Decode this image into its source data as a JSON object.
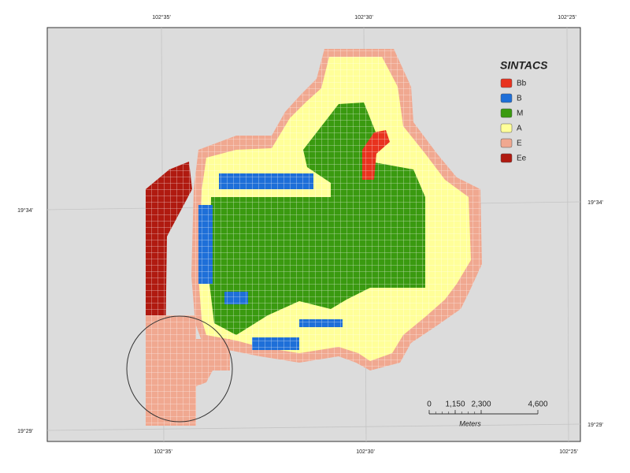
{
  "coordinates": {
    "top": [
      "102°35'",
      "102°30'",
      "102°25'"
    ],
    "bottom": [
      "102°35'",
      "102°30'",
      "102°25'"
    ],
    "left": [
      "19°34'",
      "19°29'"
    ],
    "right": [
      "19°34'",
      "19°29'"
    ]
  },
  "legend": {
    "title": "SINTACS",
    "items": [
      {
        "label": "Bb",
        "color": "#e8321e"
      },
      {
        "label": "B",
        "color": "#1e6fd8"
      },
      {
        "label": "M",
        "color": "#3a9a10"
      },
      {
        "label": "A",
        "color": "#ffff99"
      },
      {
        "label": "E",
        "color": "#f0a890"
      },
      {
        "label": "Ee",
        "color": "#b01a10"
      }
    ]
  },
  "scale_bar": {
    "labels": [
      "0",
      "1,150",
      "2,300",
      "4,600"
    ],
    "unit": "Meters"
  }
}
